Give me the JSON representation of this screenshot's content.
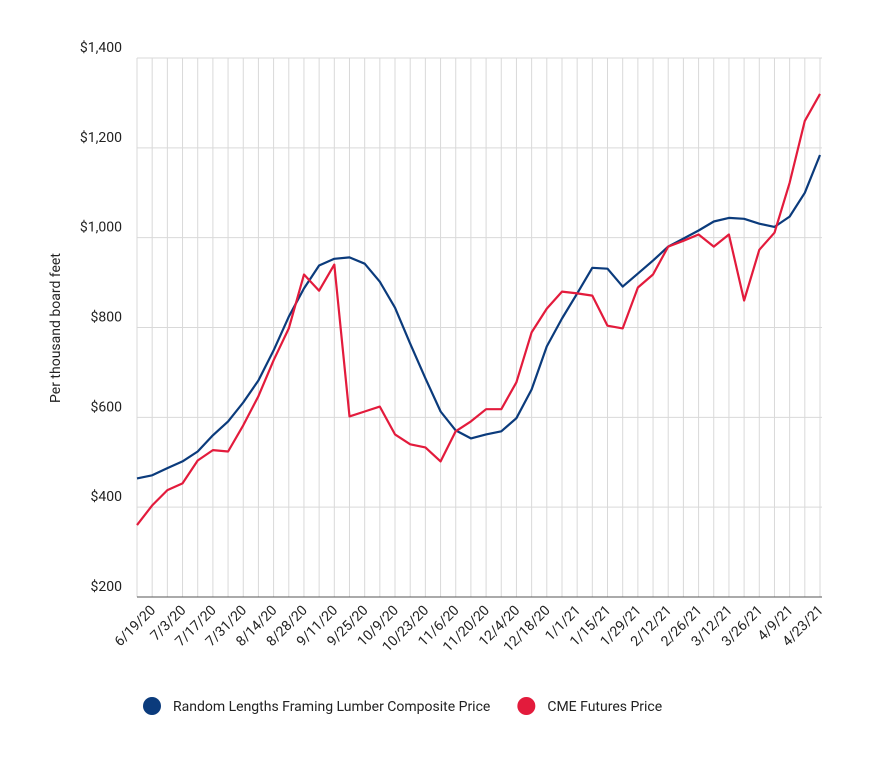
{
  "chart_data": {
    "type": "line",
    "y_label": "Per thousand board feet",
    "categories": [
      null,
      "6/19/20",
      null,
      "7/3/20",
      null,
      "7/17/20",
      null,
      "7/31/20",
      null,
      "8/14/20",
      null,
      "8/28/20",
      null,
      "9/11/20",
      null,
      "9/25/20",
      null,
      "10/9/20",
      null,
      "10/23/20",
      null,
      "11/6/20",
      null,
      "11/20/20",
      null,
      "12/4/20",
      null,
      "12/18/20",
      null,
      "1/1/21",
      null,
      "1/15/21",
      null,
      "1/29/21",
      null,
      "2/12/21",
      null,
      "2/26/21",
      null,
      "3/12/21",
      null,
      "3/26/21",
      null,
      "4/9/21",
      null,
      "4/23/21"
    ],
    "series": [
      {
        "name": "Random Lengths Framing Lumber Composite Price",
        "color": "#0b3b7c",
        "values": [
          464,
          471,
          487,
          502,
          524,
          560,
          591,
          633,
          682,
          749,
          824,
          887,
          938,
          953,
          956,
          942,
          902,
          844,
          764,
          687,
          613,
          571,
          553,
          562,
          569,
          598,
          662,
          758,
          820,
          876,
          933,
          931,
          891,
          920,
          949,
          980,
          998,
          1016,
          1036,
          1044,
          1042,
          1031,
          1024,
          1047,
          1100,
          1184
        ]
      },
      {
        "name": "CME Futures Price",
        "color": "#e31b3c",
        "values": [
          360,
          404,
          438,
          453,
          504,
          527,
          524,
          582,
          647,
          727,
          798,
          918,
          882,
          940,
          602,
          613,
          624,
          562,
          540,
          533,
          502,
          569,
          591,
          618,
          618,
          678,
          789,
          842,
          880,
          876,
          871,
          804,
          798,
          889,
          918,
          980,
          993,
          1007,
          980,
          1007,
          860,
          973,
          1011,
          1122,
          1260,
          1320
        ]
      }
    ],
    "ylim": [
      200,
      1400
    ],
    "yticks": [
      {
        "value": 200,
        "label": "$200"
      },
      {
        "value": 400,
        "label": "$400"
      },
      {
        "value": 600,
        "label": "$600"
      },
      {
        "value": 800,
        "label": "$800"
      },
      {
        "value": 1000,
        "label": "$1,000"
      },
      {
        "value": 1200,
        "label": "$1,200"
      },
      {
        "value": 1400,
        "label": "$1,400"
      }
    ],
    "grid": true,
    "legend": "bottom"
  }
}
